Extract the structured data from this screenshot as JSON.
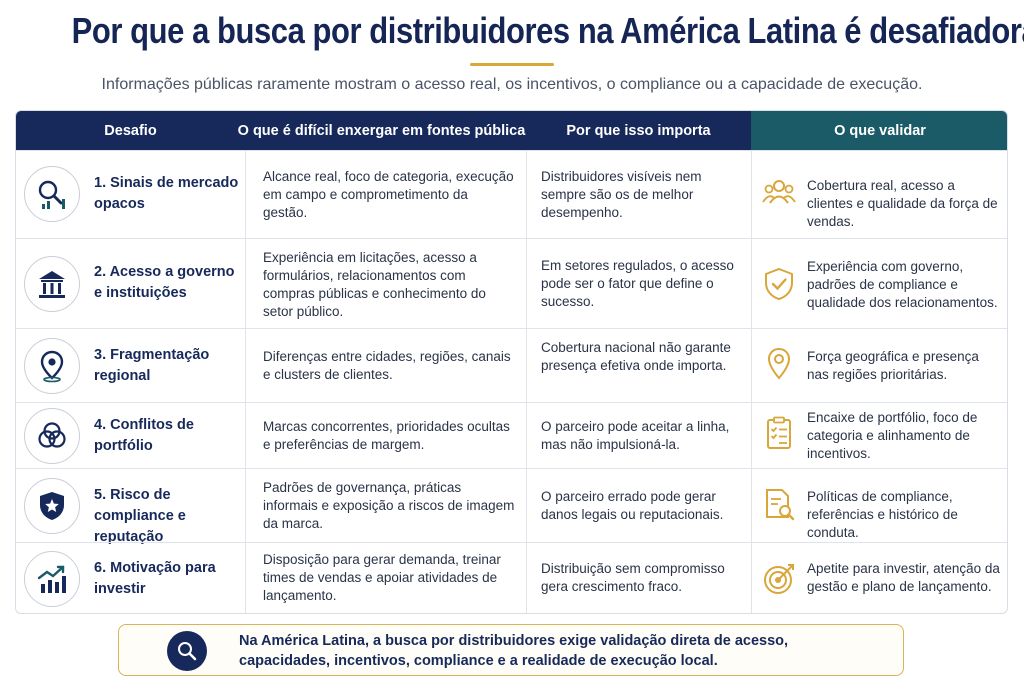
{
  "page": {
    "title": "Por que a busca por distribuidores na América Latina é desafiadora?",
    "subtitle": "Informações públicas raramente mostram o acesso real, os incentivos, o compliance ou a capacidade de execução."
  },
  "table": {
    "headers": [
      "Desafio",
      "O que é difícil enxergar em fontes públicas",
      "Por que isso importa",
      "O que validar"
    ],
    "rows": [
      {
        "icon": "market-search-icon",
        "challenge": "1. Sinais de mercado opacos",
        "hard_to_see": "Alcance real, foco de categoria, execução em campo e comprometimento da gestão.",
        "why": "Distribuidores visíveis nem sempre são os de melhor desempenho.",
        "validate_icon": "people-icon",
        "validate": "Cobertura real, acesso a clientes e qualidade da força de vendas."
      },
      {
        "icon": "government-building-icon",
        "challenge": "2. Acesso a governo e instituições",
        "hard_to_see": "Experiência em licitações, acesso a formulários, relacionamentos com compras públicas e conhecimento do setor público.",
        "why": "Em setores regulados, o acesso pode ser o fator que define o sucesso.",
        "validate_icon": "shield-check-icon",
        "validate": "Experiência com governo, padrões de compliance e qualidade dos relacionamentos."
      },
      {
        "icon": "location-pin-icon",
        "challenge": "3. Fragmentação regional",
        "hard_to_see": "Diferenças entre cidades, regiões, canais e clusters de clientes.",
        "why": "Cobertura nacional não garante presença efetiva onde importa.",
        "validate_icon": "map-pin-icon",
        "validate": "Força geográfica e presença nas regiões prioritárias."
      },
      {
        "icon": "overlapping-circles-icon",
        "challenge": "4. Conflitos de portfólio",
        "hard_to_see": "Marcas concorrentes, prioridades ocultas e preferências de margem.",
        "why": "O parceiro pode aceitar a linha, mas não impulsioná-la.",
        "validate_icon": "checklist-icon",
        "validate": "Encaixe de portfólio, foco de categoria e alinhamento de incentivos."
      },
      {
        "icon": "shield-star-icon",
        "challenge": "5. Risco de compliance e reputação",
        "hard_to_see": "Padrões de governança, práticas informais e exposição a riscos de imagem da marca.",
        "why": "O parceiro errado pode gerar danos legais ou reputacionais.",
        "validate_icon": "document-search-icon",
        "validate": "Políticas de compliance, referências e histórico de conduta."
      },
      {
        "icon": "growth-chart-icon",
        "challenge": "6. Motivação para investir",
        "hard_to_see": "Disposição para gerar demanda, treinar times de vendas e apoiar atividades de lançamento.",
        "why": "Distribuição sem compromisso gera crescimento fraco.",
        "validate_icon": "target-icon",
        "validate": "Apetite para investir, atenção da gestão e plano de lançamento."
      }
    ]
  },
  "footer": {
    "icon": "magnifier-icon",
    "text": "Na América Latina, a busca por distribuidores exige validação direta de acesso, capacidades, incentivos, compliance e a realidade de execução local."
  },
  "colors": {
    "navy": "#16295a",
    "teal": "#1b5a67",
    "gold": "#d9a63a"
  }
}
